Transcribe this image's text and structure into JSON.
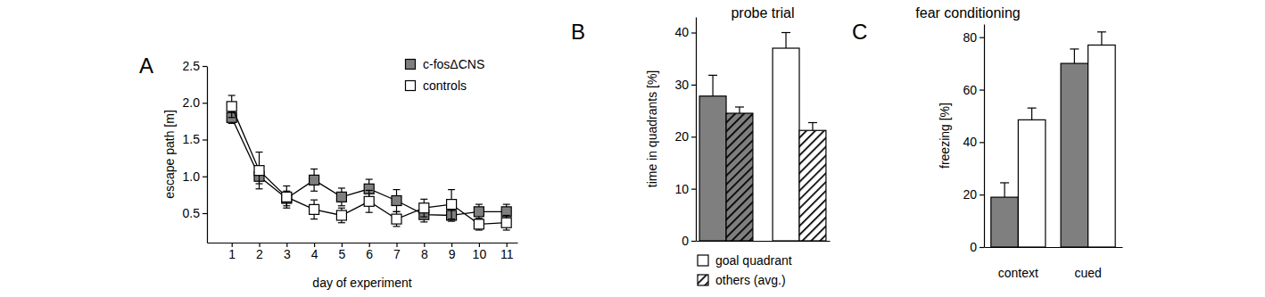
{
  "chart_data": [
    {
      "panel": "A",
      "type": "line",
      "x": [
        1,
        2,
        3,
        4,
        5,
        6,
        7,
        8,
        9,
        10,
        11
      ],
      "xlim": [
        0.1,
        11.4
      ],
      "xticks": [
        1,
        2,
        3,
        4,
        5,
        6,
        7,
        8,
        9,
        10,
        11
      ],
      "ylim": [
        0.1,
        2.5
      ],
      "yticks": [
        0.5,
        {
          "value": 1,
          "label": "1.0"
        },
        1.5,
        {
          "value": 2,
          "label": "2.0"
        },
        2.5
      ],
      "x_label": "day of experiment",
      "y_label": "escape path [m]",
      "legend": "top right",
      "series": [
        {
          "name": "c-fosΔCNS",
          "color": "#7f7f7f",
          "marker": "square",
          "line_style": "solid",
          "values": [
            1.8,
            1.0,
            0.7,
            0.95,
            0.72,
            0.83,
            0.67,
            0.48,
            0.47,
            0.52,
            0.52
          ],
          "errors": [
            0.08,
            0.1,
            0.1,
            0.15,
            0.12,
            0.13,
            0.15,
            0.1,
            0.08,
            0.1,
            0.1
          ]
        },
        {
          "name": "controls",
          "color": "#ffffff",
          "marker": "square",
          "line_style": "solid",
          "values": [
            1.95,
            1.08,
            0.72,
            0.55,
            0.47,
            0.66,
            0.42,
            0.57,
            0.62,
            0.35,
            0.37
          ],
          "errors": [
            0.15,
            0.25,
            0.15,
            0.13,
            0.1,
            0.15,
            0.1,
            0.12,
            0.2,
            0.08,
            0.1
          ]
        }
      ]
    },
    {
      "panel": "B",
      "type": "bar",
      "title": "probe trial",
      "y_label": "time in quadrants [%]",
      "categories": [
        null,
        null
      ],
      "ylim": [
        0,
        43
      ],
      "yticks": [
        0,
        10,
        20,
        30,
        40
      ],
      "legend": "bottom",
      "series": [
        {
          "name": "goal quadrant",
          "colors": [
            "#7f7f7f",
            "#ffffff"
          ],
          "values": [
            27.8,
            37.0
          ],
          "errors": [
            4.0,
            3.0
          ]
        },
        {
          "name": "others (avg.)",
          "colors": [
            "#7f7f7f",
            "#ffffff"
          ],
          "line_style": "hatched",
          "values": [
            24.5,
            21.2
          ],
          "errors": [
            1.2,
            1.5
          ]
        }
      ]
    },
    {
      "panel": "C",
      "type": "bar",
      "title": "fear conditioning",
      "y_label": "freezing [%]",
      "categories": [
        "context",
        "cued"
      ],
      "ylim": [
        0,
        85
      ],
      "yticks": [
        0,
        20,
        40,
        60,
        80
      ],
      "series": [
        {
          "color": "#7f7f7f",
          "values": [
            19.0,
            70.0
          ],
          "errors": [
            5.5,
            5.5
          ]
        },
        {
          "color": "#ffffff",
          "values": [
            48.5,
            77.0
          ],
          "errors": [
            4.5,
            5.0
          ]
        }
      ]
    }
  ]
}
